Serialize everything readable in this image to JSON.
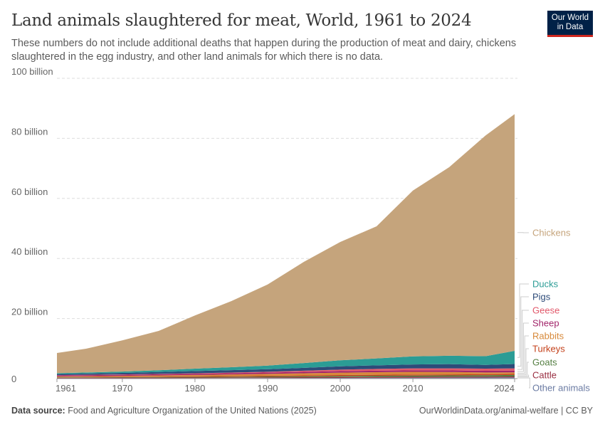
{
  "header": {
    "title": "Land animals slaughtered for meat, World, 1961 to 2024",
    "subtitle": "These numbers do not include additional deaths that happen during the production of meat and dairy, chickens slaughtered in the egg industry, and other land animals for which there is no data.",
    "logo": "Our World in Data"
  },
  "footer": {
    "source_label": "Data source:",
    "source": "Food and Agriculture Organization of the United Nations (2025)",
    "link": "OurWorldinData.org/animal-welfare | CC BY"
  },
  "chart_data": {
    "type": "area",
    "stacked": true,
    "title": "Land animals slaughtered for meat, World, 1961 to 2024",
    "xlim": [
      1961,
      2024
    ],
    "ylim": [
      0,
      100000000000
    ],
    "y_ticks": [
      {
        "v": 0,
        "label": "0"
      },
      {
        "v": 20,
        "label": "20 billion"
      },
      {
        "v": 40,
        "label": "40 billion"
      },
      {
        "v": 60,
        "label": "60 billion"
      },
      {
        "v": 80,
        "label": "80 billion"
      },
      {
        "v": 100,
        "label": "100 billion"
      }
    ],
    "x_ticks": [
      "1961",
      "1970",
      "1980",
      "1990",
      "2000",
      "2010",
      "2024"
    ],
    "grid": "horizontal dashed",
    "legend": "right, inline labels",
    "units": "billion",
    "x": [
      1961,
      1965,
      1970,
      1975,
      1980,
      1985,
      1990,
      1995,
      2000,
      2005,
      2010,
      2015,
      2020,
      2024
    ],
    "series": [
      {
        "name": "Other animals",
        "color": "#6b7ba3",
        "values": [
          0.1,
          0.11,
          0.12,
          0.13,
          0.15,
          0.17,
          0.2,
          0.22,
          0.25,
          0.28,
          0.3,
          0.32,
          0.35,
          0.4
        ]
      },
      {
        "name": "Cattle",
        "color": "#9a2f42",
        "values": [
          0.17,
          0.18,
          0.2,
          0.21,
          0.22,
          0.22,
          0.23,
          0.25,
          0.27,
          0.28,
          0.29,
          0.29,
          0.29,
          0.3
        ]
      },
      {
        "name": "Goats",
        "color": "#578145",
        "values": [
          0.14,
          0.15,
          0.16,
          0.18,
          0.2,
          0.23,
          0.27,
          0.31,
          0.35,
          0.39,
          0.42,
          0.45,
          0.48,
          0.5
        ]
      },
      {
        "name": "Turkeys",
        "color": "#c4411b",
        "values": [
          0.1,
          0.11,
          0.13,
          0.16,
          0.2,
          0.24,
          0.28,
          0.3,
          0.32,
          0.33,
          0.33,
          0.33,
          0.32,
          0.33
        ]
      },
      {
        "name": "Rabbits",
        "color": "#d7893a",
        "values": [
          0.2,
          0.25,
          0.3,
          0.38,
          0.45,
          0.52,
          0.6,
          0.7,
          0.8,
          0.85,
          0.9,
          0.8,
          0.6,
          0.55
        ]
      },
      {
        "name": "Sheep",
        "color": "#a2266b",
        "values": [
          0.33,
          0.35,
          0.37,
          0.38,
          0.4,
          0.42,
          0.45,
          0.48,
          0.5,
          0.51,
          0.52,
          0.55,
          0.57,
          0.6
        ]
      },
      {
        "name": "Geese",
        "color": "#e25a6c",
        "values": [
          0.1,
          0.11,
          0.12,
          0.13,
          0.15,
          0.2,
          0.25,
          0.38,
          0.5,
          0.58,
          0.65,
          0.68,
          0.7,
          0.72
        ]
      },
      {
        "name": "Pigs",
        "color": "#2d4b79",
        "values": [
          0.38,
          0.43,
          0.5,
          0.62,
          0.75,
          0.8,
          0.85,
          0.95,
          1.1,
          1.2,
          1.3,
          1.4,
          1.25,
          1.45
        ]
      },
      {
        "name": "Ducks",
        "color": "#2b9c95",
        "values": [
          0.3,
          0.36,
          0.45,
          0.6,
          0.8,
          1.0,
          1.2,
          1.6,
          2.0,
          2.3,
          2.7,
          2.8,
          2.9,
          4.4
        ]
      },
      {
        "name": "Chickens",
        "color": "#c5a47c",
        "values": [
          6.7,
          7.9,
          10.4,
          13.1,
          17.7,
          22.0,
          27.0,
          33.7,
          39.4,
          44.0,
          55.2,
          62.8,
          73.5,
          78.8
        ]
      }
    ]
  }
}
